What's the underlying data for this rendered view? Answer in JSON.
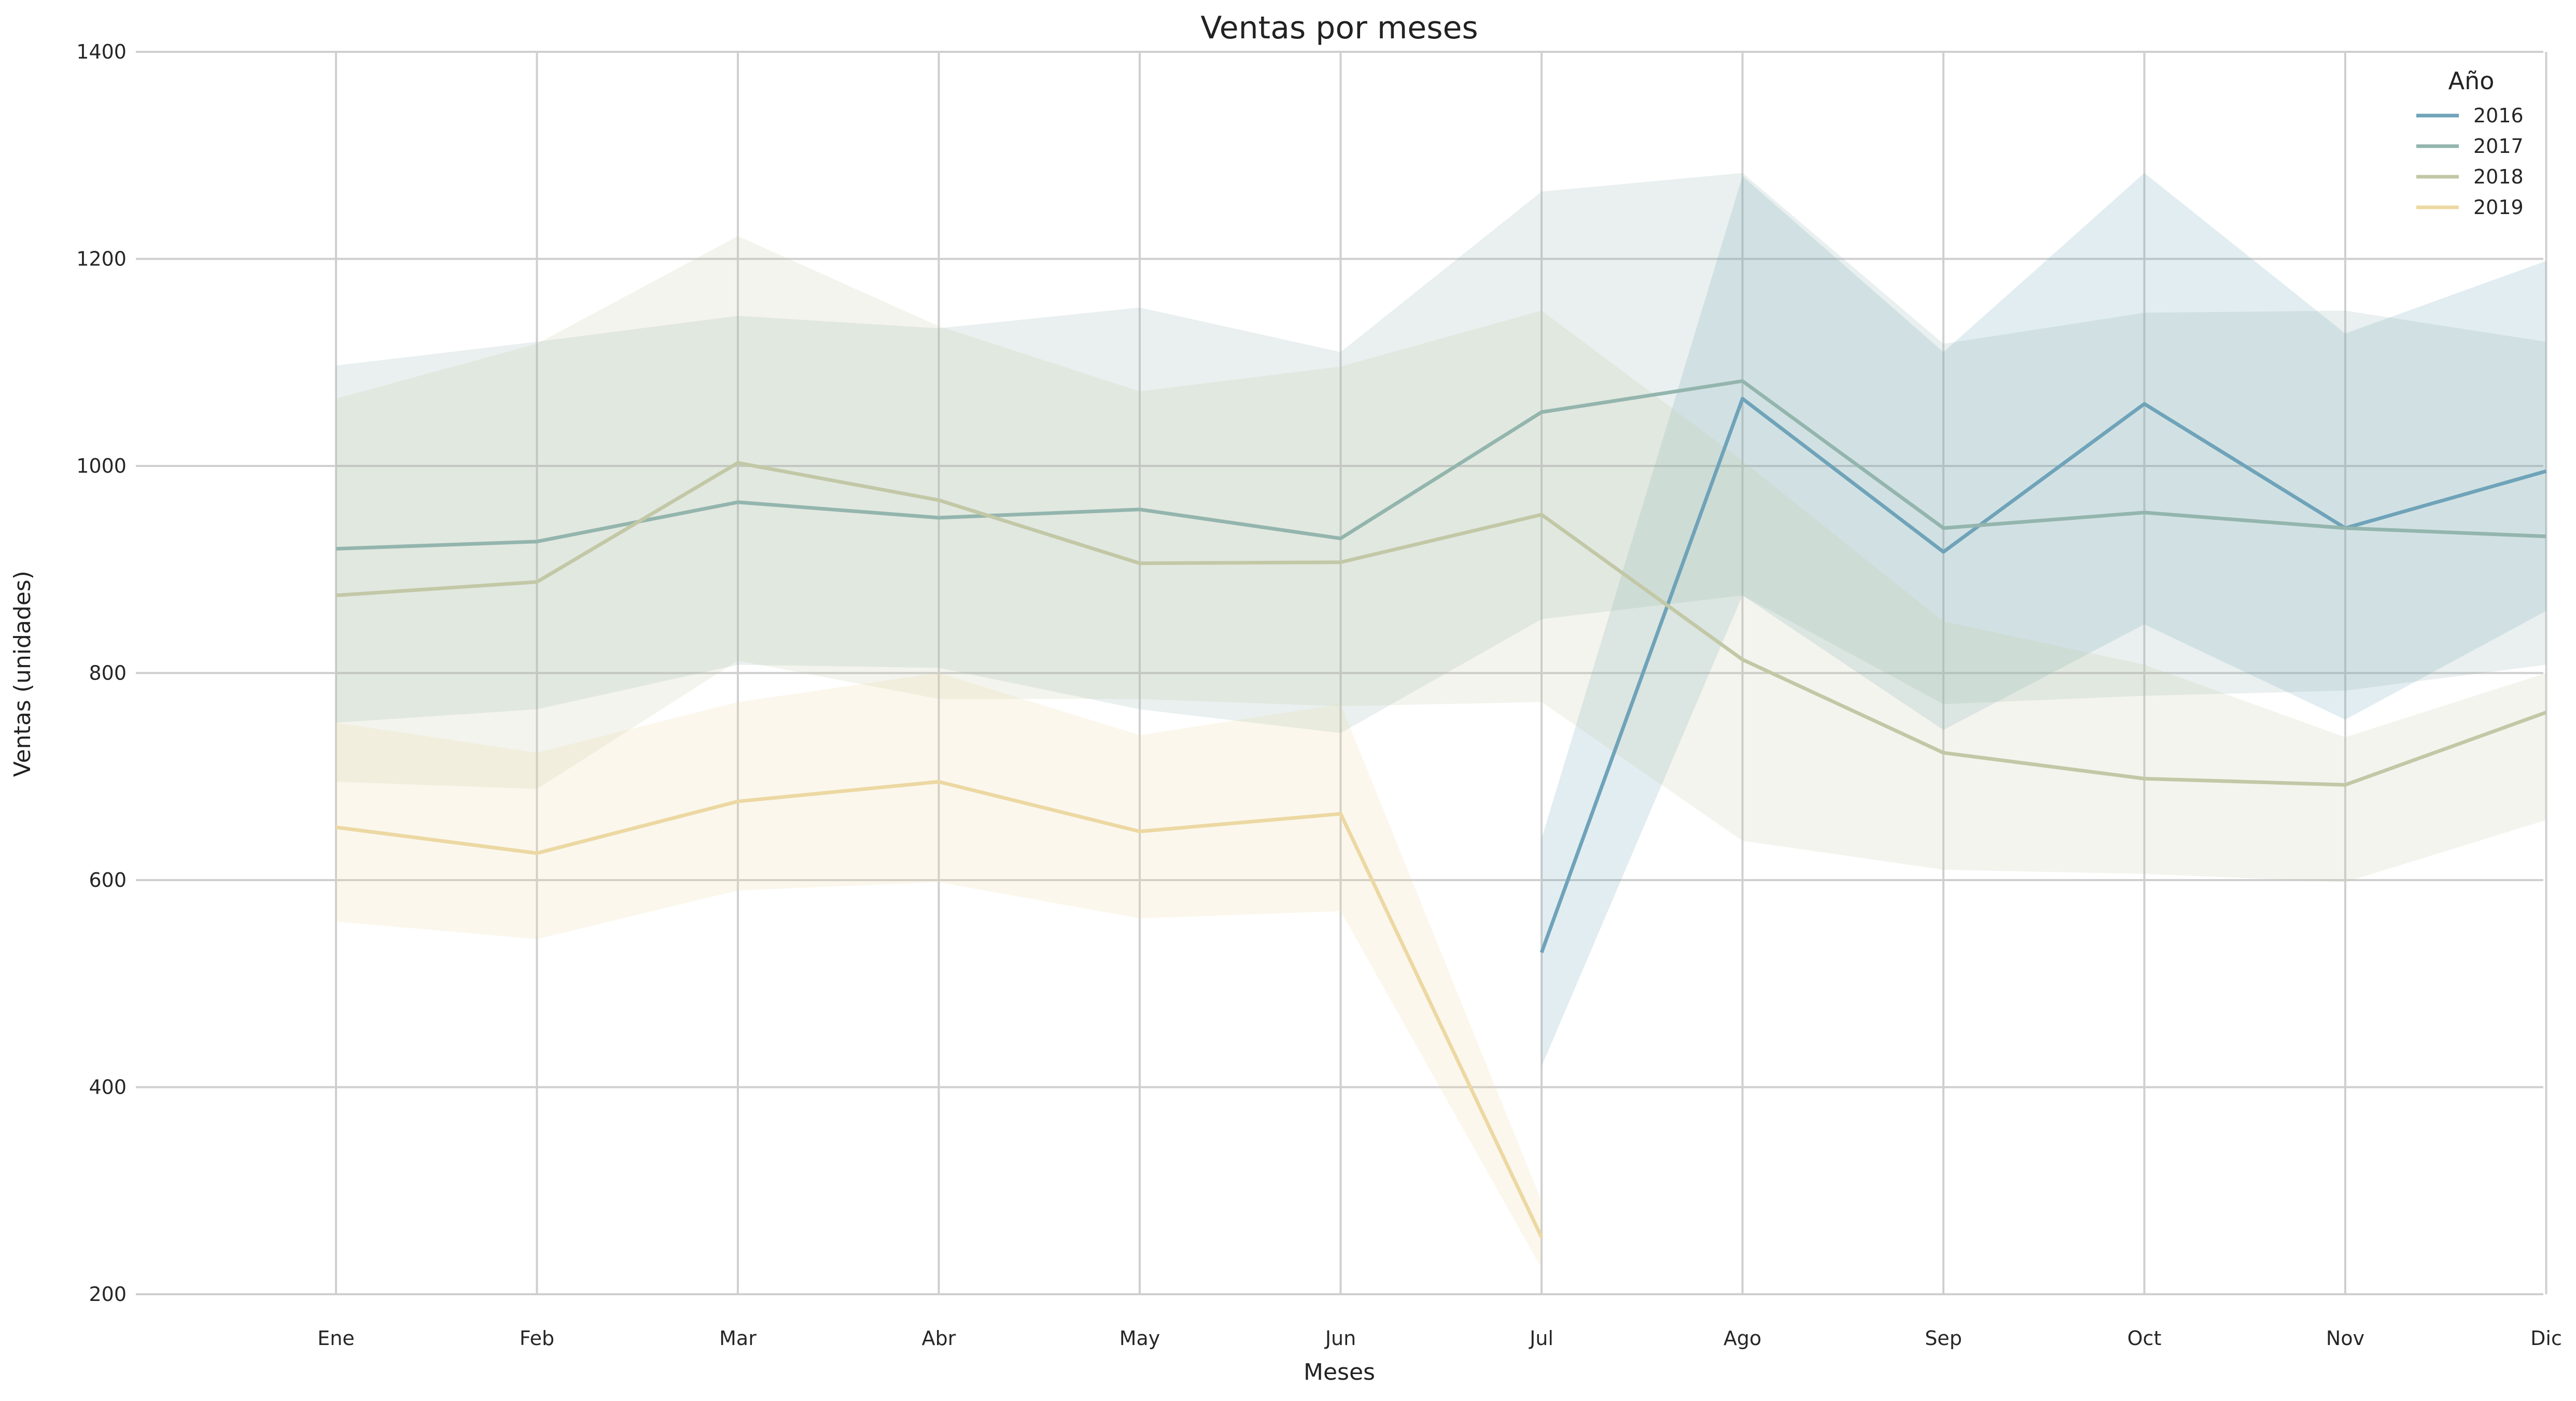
{
  "chart_data": {
    "type": "line",
    "title": "Ventas por meses",
    "xlabel": "Meses",
    "ylabel": "Ventas (unidades)",
    "ylim": [
      200,
      1400
    ],
    "yticks": [
      "200",
      "400",
      "600",
      "800",
      "1000",
      "1200",
      "1400"
    ],
    "categories": [
      "Ene",
      "Feb",
      "Mar",
      "Abr",
      "May",
      "Jun",
      "Jul",
      "Ago",
      "Sep",
      "Oct",
      "Nov",
      "Dic"
    ],
    "grid": true,
    "legend": {
      "title": "Año",
      "placement": "top-right"
    },
    "series": [
      {
        "name": "2016",
        "color": "#6fa3b9",
        "values": [
          null,
          null,
          null,
          null,
          null,
          null,
          530,
          1065,
          917,
          1060,
          940,
          995
        ],
        "lower": [
          null,
          null,
          null,
          null,
          null,
          null,
          420,
          875,
          745,
          847,
          755,
          860
        ],
        "upper": [
          null,
          null,
          null,
          null,
          null,
          null,
          640,
          1280,
          1110,
          1283,
          1128,
          1198
        ]
      },
      {
        "name": "2017",
        "color": "#93b5ad",
        "values": [
          920,
          927,
          965,
          950,
          958,
          930,
          1052,
          1082,
          940,
          955,
          940,
          932
        ],
        "lower": [
          752,
          765,
          808,
          805,
          765,
          742,
          852,
          875,
          770,
          778,
          783,
          808
        ],
        "upper": [
          1097,
          1120,
          1145,
          1133,
          1153,
          1110,
          1265,
          1283,
          1118,
          1148,
          1150,
          1120
        ]
      },
      {
        "name": "2018",
        "color": "#c2c8a6",
        "values": [
          875,
          888,
          1003,
          967,
          906,
          907,
          953,
          813,
          723,
          698,
          692,
          762
        ],
        "lower": [
          695,
          688,
          812,
          775,
          775,
          768,
          772,
          638,
          610,
          606,
          598,
          658
        ],
        "upper": [
          1065,
          1118,
          1222,
          1135,
          1072,
          1096,
          1150,
          1005,
          850,
          808,
          738,
          800
        ]
      },
      {
        "name": "2019",
        "color": "#ecd8a2",
        "values": [
          651,
          626,
          676,
          695,
          647,
          664,
          255,
          null,
          null,
          null,
          null,
          null
        ],
        "lower": [
          560,
          543,
          590,
          598,
          563,
          570,
          225,
          null,
          null,
          null,
          null,
          null
        ],
        "upper": [
          752,
          723,
          772,
          800,
          740,
          770,
          290,
          null,
          null,
          null,
          null,
          null
        ]
      }
    ]
  }
}
